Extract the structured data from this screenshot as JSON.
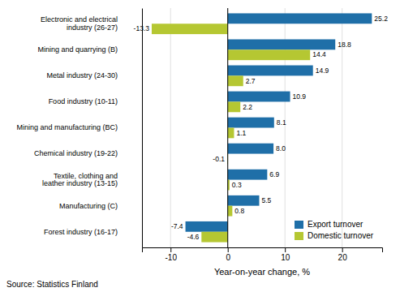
{
  "chart_data": {
    "type": "bar",
    "orientation": "horizontal",
    "x_label": "Year-on-year change, %",
    "source": "Source: Statistics Finland",
    "categories": [
      "Electronic and electrical\nindustry (26-27)",
      "Mining and quarrying (B)",
      "Metal industry (24-30)",
      "Food industry (10-11)",
      "Mining and manufacturing (BC)",
      "Chemical industry (19-22)",
      "Textile, clothing and\nleather industry (13-15)",
      "Manufacturing (C)",
      "Forest industry (16-17)"
    ],
    "series": [
      {
        "name": "Export turnover",
        "color": "#1f6fa8",
        "values": [
          25.2,
          18.8,
          14.9,
          10.9,
          8.1,
          8.0,
          6.9,
          5.5,
          -7.4
        ],
        "value_labels": [
          "25.2",
          "18.8",
          "14.9",
          "10.9",
          "8.1",
          "8.0",
          "6.9",
          "5.5",
          "-7.4"
        ]
      },
      {
        "name": "Domestic turnover",
        "color": "#b5c732",
        "values": [
          -13.3,
          14.4,
          2.7,
          2.2,
          1.1,
          -0.1,
          0.3,
          0.8,
          -4.6
        ],
        "value_labels": [
          "-13.3",
          "14.4",
          "2.7",
          "2.2",
          "1.1",
          "-0.1",
          "0.3",
          "0.8",
          "-4.6"
        ]
      }
    ],
    "xlim": [
      -15,
      27
    ],
    "xticks": [
      -10,
      0,
      10,
      20
    ],
    "grid": true,
    "legend": "lower right",
    "data_labels": true
  }
}
